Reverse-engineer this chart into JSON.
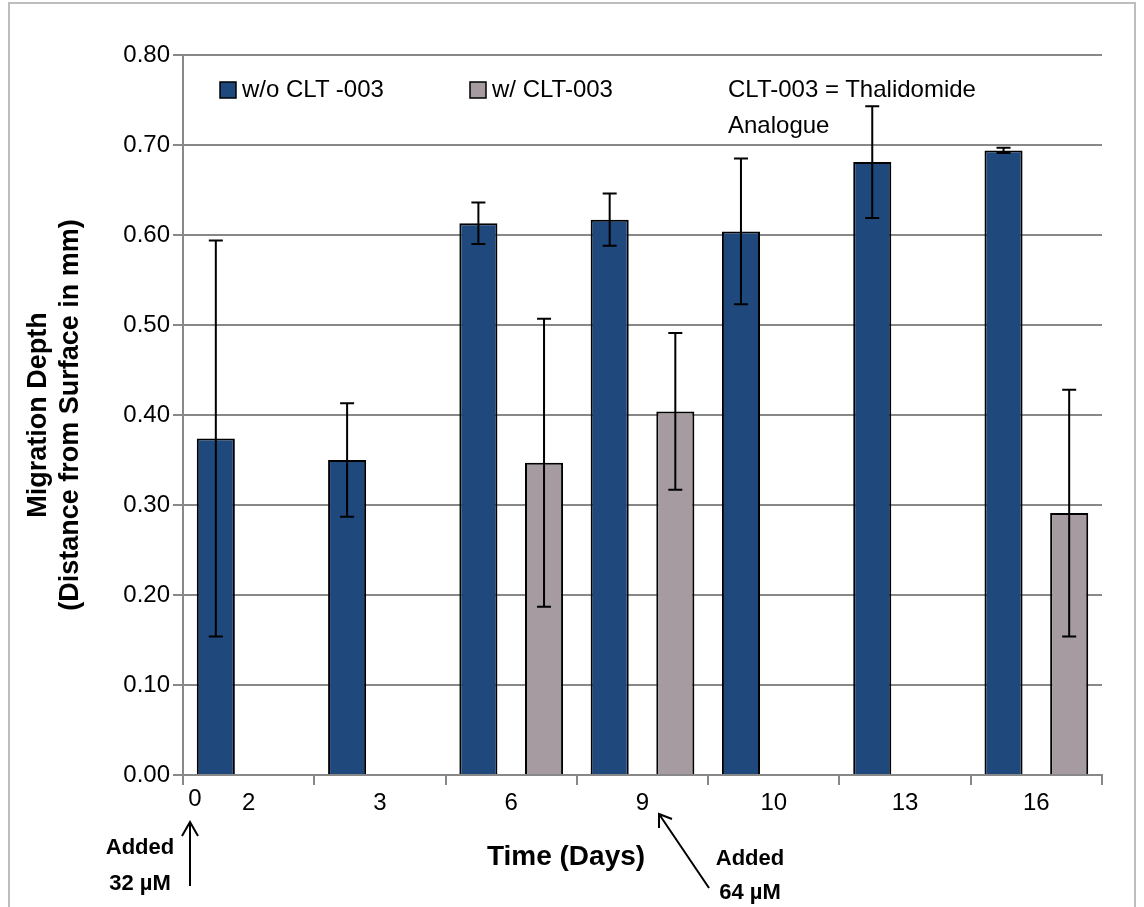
{
  "chart_data": {
    "type": "bar",
    "xlabel": "Time (Days)",
    "ylabel": "Migration Depth\n(Distance from Surface in mm)",
    "categories": [
      "2",
      "3",
      "6",
      "9",
      "10",
      "13",
      "16"
    ],
    "series": [
      {
        "name": "w/o CLT -003",
        "color": "#1f497d",
        "values": [
          0.374,
          0.35,
          0.613,
          0.617,
          0.604,
          0.681,
          0.694
        ],
        "errors": [
          0.22,
          0.063,
          0.023,
          0.029,
          0.081,
          0.062,
          0.003
        ]
      },
      {
        "name": "w/ CLT-003",
        "color": "#a59ba0",
        "values": [
          null,
          null,
          0.347,
          0.404,
          null,
          null,
          0.291
        ],
        "errors": [
          null,
          null,
          0.16,
          0.087,
          null,
          null,
          0.137
        ]
      }
    ],
    "ylim": [
      0,
      0.8
    ],
    "yticks": [
      {
        "value": 0,
        "label": "0.00"
      },
      {
        "value": 0.1,
        "label": "0.10"
      },
      {
        "value": 0.2,
        "label": "0.20"
      },
      {
        "value": 0.3,
        "label": "0.30"
      },
      {
        "value": 0.4,
        "label": "0.40"
      },
      {
        "value": 0.5,
        "label": "0.50"
      },
      {
        "value": 0.6,
        "label": "0.60"
      },
      {
        "value": 0.7,
        "label": "0.70"
      },
      {
        "value": 0.8,
        "label": "0.80"
      }
    ],
    "grid": "y",
    "legend": "top",
    "annotations": [
      "CLT-003 = Thalidomide\nAnalogue",
      "0",
      "Added\n32 µM",
      "Added\n64 µM"
    ]
  }
}
